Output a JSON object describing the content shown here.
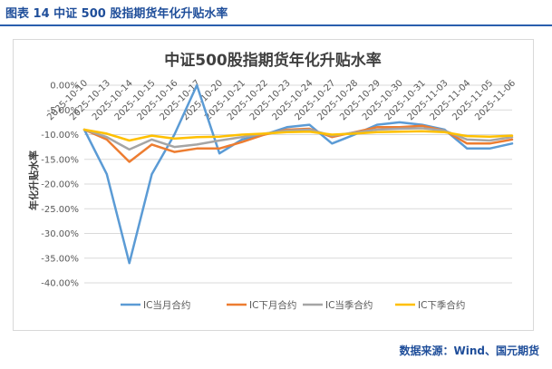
{
  "figure": {
    "label": "图表 14  中证 500 股指期货年化升贴水率",
    "source": "数据来源：Wind、国元期货"
  },
  "colors": {
    "header_blue": "#1f4e9a",
    "ic_current": "#5b9bd5",
    "ic_next": "#ed7d31",
    "ic_quarter": "#a5a5a5",
    "ic_next_quarter": "#ffc000"
  },
  "chart_data": {
    "type": "line",
    "title": "中证500股指期货年化升贴水率",
    "xlabel": "",
    "ylabel": "年化升贴水率",
    "ylim": [
      -0.4,
      0.0
    ],
    "yticks": [
      0,
      -0.05,
      -0.1,
      -0.15,
      -0.2,
      -0.25,
      -0.3,
      -0.35,
      -0.4
    ],
    "ytick_labels": [
      "0.00%",
      "-5.00%",
      "-10.00%",
      "-15.00%",
      "-20.00%",
      "-25.00%",
      "-30.00%",
      "-35.00%",
      "-40.00%"
    ],
    "x": [
      "2025-10-10",
      "2025-10-13",
      "2025-10-14",
      "2025-10-15",
      "2025-10-16",
      "2025-10-17",
      "2025-10-20",
      "2025-10-21",
      "2025-10-22",
      "2025-10-23",
      "2025-10-24",
      "2025-10-27",
      "2025-10-28",
      "2025-10-29",
      "2025-10-30",
      "2025-10-31",
      "2025-11-03",
      "2025-11-04",
      "2025-11-05",
      "2025-11-06"
    ],
    "x_tick_labels": [
      "2025-10-10",
      "2025-10-13",
      "2025-10-14",
      "2025-10-15",
      "2025-10-16",
      "2025-10-17",
      "2025-10-20",
      "2025-10-21",
      "2025-10-22",
      "2025-10-23",
      "2025-10-24",
      "2025-10-27",
      "2025-10-28",
      "2025-10-29",
      "2025-10-30",
      "2025-10-31",
      "2025-11-03",
      "2025-11-04",
      "2025-11-05",
      "2025-11-06"
    ],
    "legend_position": "bottom",
    "series": [
      {
        "name": "IC当月合约",
        "color": "#5b9bd5",
        "values": [
          -0.09,
          -0.18,
          -0.36,
          -0.18,
          -0.1,
          0.0,
          -0.138,
          -0.11,
          -0.1,
          -0.085,
          -0.08,
          -0.118,
          -0.1,
          -0.08,
          -0.075,
          -0.08,
          -0.09,
          -0.128,
          -0.128,
          -0.118
        ]
      },
      {
        "name": "IC下月合约",
        "color": "#ed7d31",
        "values": [
          -0.09,
          -0.11,
          -0.155,
          -0.12,
          -0.135,
          -0.128,
          -0.128,
          -0.115,
          -0.1,
          -0.09,
          -0.088,
          -0.105,
          -0.095,
          -0.085,
          -0.085,
          -0.082,
          -0.092,
          -0.118,
          -0.118,
          -0.11
        ]
      },
      {
        "name": "IC当季合约",
        "color": "#a5a5a5",
        "values": [
          -0.09,
          -0.105,
          -0.13,
          -0.11,
          -0.125,
          -0.12,
          -0.112,
          -0.105,
          -0.098,
          -0.092,
          -0.09,
          -0.102,
          -0.096,
          -0.09,
          -0.088,
          -0.087,
          -0.092,
          -0.11,
          -0.112,
          -0.105
        ]
      },
      {
        "name": "IC下季合约",
        "color": "#ffc000",
        "values": [
          -0.09,
          -0.098,
          -0.112,
          -0.102,
          -0.108,
          -0.105,
          -0.104,
          -0.1,
          -0.098,
          -0.095,
          -0.094,
          -0.1,
          -0.098,
          -0.095,
          -0.094,
          -0.093,
          -0.095,
          -0.103,
          -0.104,
          -0.102
        ]
      }
    ]
  }
}
